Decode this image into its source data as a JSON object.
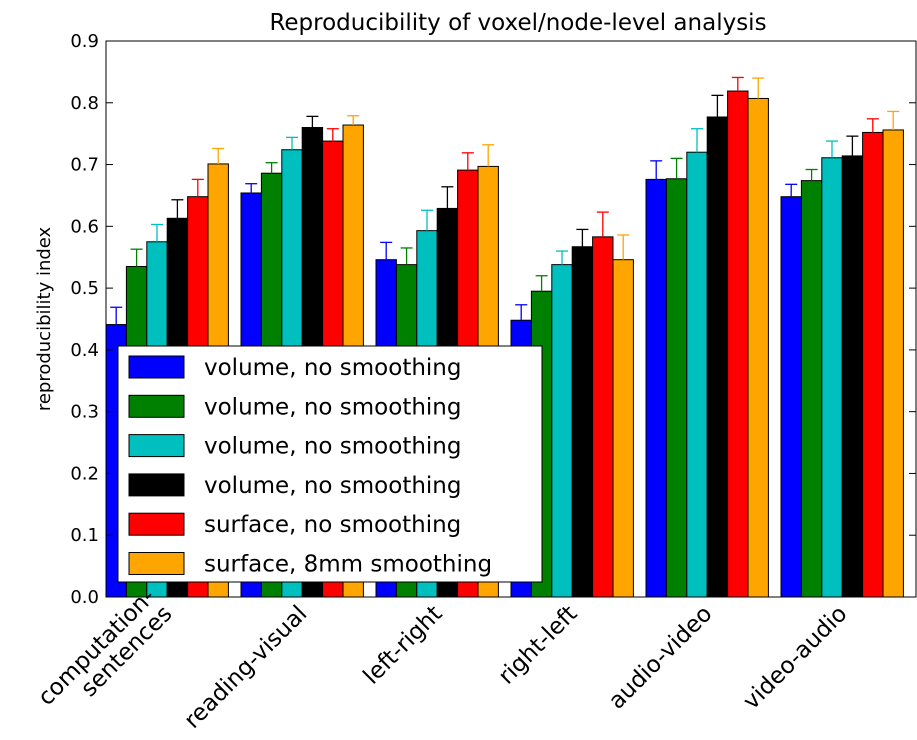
{
  "chart_data": {
    "type": "bar",
    "title": "Reproducibility of voxel/node-level analysis",
    "y_label": "reproducibility index",
    "categories": [
      "computation-\nsentences",
      "reading-visual",
      "left-right",
      "right-left",
      "audio-video",
      "video-audio"
    ],
    "series": [
      {
        "name": "volume, no smoothing",
        "color": "#0000ff",
        "values": [
          0.441,
          0.654,
          0.546,
          0.448,
          0.676,
          0.648
        ],
        "errors": [
          0.028,
          0.015,
          0.028,
          0.025,
          0.03,
          0.02
        ]
      },
      {
        "name": "volume, no smoothing",
        "color": "#008000",
        "values": [
          0.535,
          0.686,
          0.538,
          0.495,
          0.677,
          0.674
        ],
        "errors": [
          0.028,
          0.017,
          0.027,
          0.025,
          0.033,
          0.018
        ]
      },
      {
        "name": "volume, no smoothing",
        "color": "#00bfbf",
        "values": [
          0.575,
          0.724,
          0.593,
          0.538,
          0.72,
          0.711
        ],
        "errors": [
          0.028,
          0.02,
          0.033,
          0.022,
          0.038,
          0.027
        ]
      },
      {
        "name": "volume, no smoothing",
        "color": "#000000",
        "values": [
          0.613,
          0.76,
          0.629,
          0.567,
          0.777,
          0.714
        ],
        "errors": [
          0.03,
          0.018,
          0.035,
          0.028,
          0.035,
          0.032
        ]
      },
      {
        "name": "surface, no smoothing",
        "color": "#ff0000",
        "values": [
          0.648,
          0.738,
          0.691,
          0.583,
          0.819,
          0.752
        ],
        "errors": [
          0.028,
          0.02,
          0.028,
          0.04,
          0.022,
          0.022
        ]
      },
      {
        "name": "surface, 8mm smoothing",
        "color": "#ffa500",
        "values": [
          0.701,
          0.764,
          0.697,
          0.546,
          0.807,
          0.756
        ],
        "errors": [
          0.025,
          0.015,
          0.035,
          0.04,
          0.033,
          0.03
        ]
      }
    ],
    "ylim": [
      0,
      0.9
    ],
    "yticks": [
      {
        "value": 0,
        "label": "0.0"
      },
      0.1,
      0.2,
      0.3,
      0.4,
      0.5,
      0.6,
      0.7,
      0.8,
      0.9
    ],
    "legend": "lower left"
  }
}
